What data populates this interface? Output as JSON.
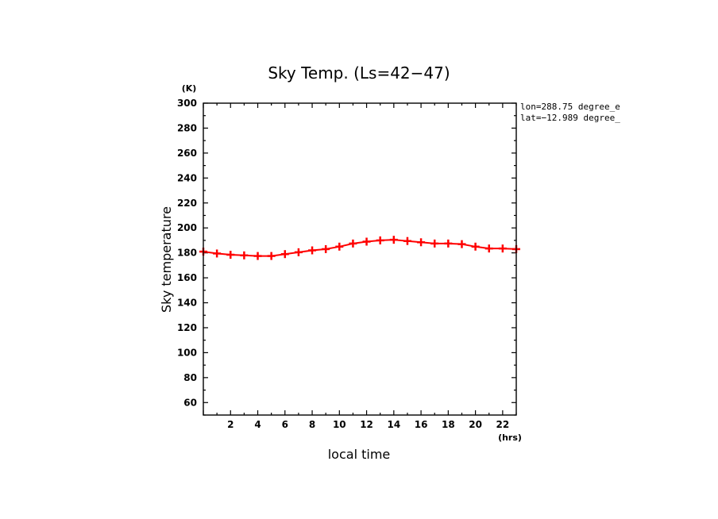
{
  "chart_data": {
    "type": "line",
    "title": "Sky Temp. (Ls=42−47)",
    "xlabel": "local time",
    "ylabel": "Sky temperature",
    "x_unit": "(hrs)",
    "y_unit": "(K)",
    "xlim": [
      0,
      23
    ],
    "ylim": [
      50,
      300
    ],
    "x_ticks": [
      2,
      4,
      6,
      8,
      10,
      12,
      14,
      16,
      18,
      20,
      22
    ],
    "y_ticks": [
      60,
      80,
      100,
      120,
      140,
      160,
      180,
      200,
      220,
      240,
      260,
      280,
      300
    ],
    "grid": false,
    "annotations": [
      "lon=288.75 degree_e",
      "lat=−12.989 degree_"
    ],
    "series": [
      {
        "color": "#ff0000",
        "x": [
          0,
          1,
          2,
          3,
          4,
          5,
          6,
          7,
          8,
          9,
          10,
          11,
          12,
          13,
          14,
          15,
          16,
          17,
          18,
          19,
          20,
          21,
          22,
          23
        ],
        "y": [
          181,
          179.5,
          178.5,
          178,
          177.5,
          177.5,
          179,
          180.5,
          182,
          183,
          185,
          187.5,
          189,
          190,
          190.5,
          189.5,
          188.5,
          187.5,
          187.5,
          187,
          185,
          183.5,
          183.5,
          183
        ]
      }
    ]
  }
}
